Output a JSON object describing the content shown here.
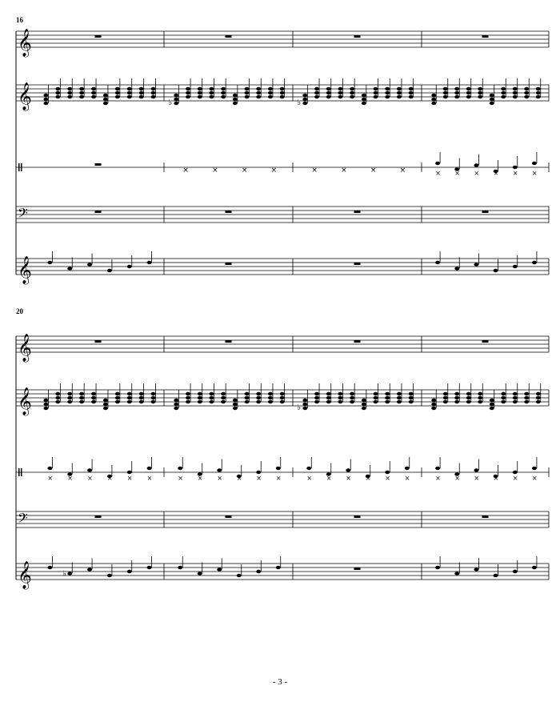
{
  "page_number": "- 3 -",
  "systems": [
    {
      "measure_number": "16",
      "staves": [
        {
          "clef": "treble",
          "content": [
            "rest",
            "rest",
            "rest",
            "rest"
          ]
        },
        {
          "clef": "treble",
          "content": [
            "chords",
            "chords-flat",
            "chords-flat",
            "chords"
          ]
        },
        {
          "clef": "percussion",
          "content": [
            "rest",
            "x-notes",
            "x-notes",
            "notes"
          ]
        },
        {
          "clef": "bass",
          "content": [
            "rest",
            "rest",
            "rest",
            "rest"
          ]
        },
        {
          "clef": "treble",
          "content": [
            "notes",
            "rest",
            "rest",
            "notes"
          ]
        }
      ]
    },
    {
      "measure_number": "20",
      "staves": [
        {
          "clef": "treble",
          "content": [
            "rest",
            "rest",
            "rest",
            "rest"
          ]
        },
        {
          "clef": "treble",
          "content": [
            "chords",
            "chords",
            "chords-flat",
            "chords"
          ]
        },
        {
          "clef": "percussion",
          "content": [
            "notes",
            "notes",
            "notes",
            "notes"
          ]
        },
        {
          "clef": "bass",
          "content": [
            "rest",
            "rest",
            "rest",
            "rest"
          ]
        },
        {
          "clef": "treble",
          "content": [
            "notes-flat",
            "notes",
            "rest",
            "notes"
          ]
        }
      ]
    }
  ]
}
